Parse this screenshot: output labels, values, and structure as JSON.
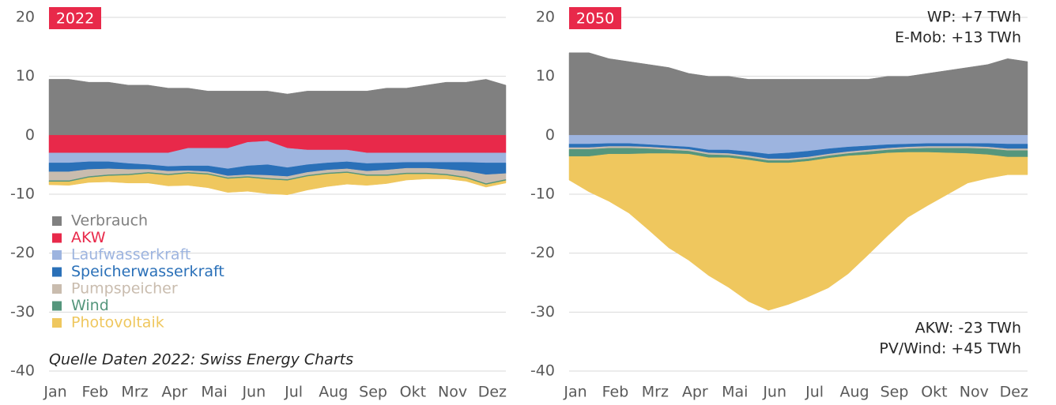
{
  "chart_data": [
    {
      "type": "area",
      "label": "2022",
      "categories": [
        "Jan",
        null,
        "Feb",
        null,
        "Mrz",
        null,
        "Apr",
        null,
        "Mai",
        null,
        "Jun",
        null,
        "Jul",
        null,
        "Aug",
        null,
        "Sep",
        null,
        "Okt",
        null,
        "Nov",
        null,
        "Dez",
        null
      ],
      "series": [
        {
          "name": "Verbrauch",
          "color": "#808080",
          "values": [
            9.5,
            9.5,
            9,
            9,
            8.5,
            8.5,
            8,
            8,
            7.5,
            7.5,
            7.5,
            7.5,
            7,
            7.5,
            7.5,
            7.5,
            7.5,
            8,
            8,
            8.5,
            9,
            9,
            9.5,
            8.5
          ]
        },
        {
          "name": "AKW",
          "color": "#e8294a",
          "values": [
            -3,
            -3,
            -3,
            -3,
            -3,
            -3,
            -3,
            -2.2,
            -2.2,
            -2.2,
            -1.2,
            -1,
            -2.2,
            -2.5,
            -2.5,
            -2.5,
            -3,
            -3,
            -3,
            -3,
            -3,
            -3,
            -3,
            -3
          ]
        },
        {
          "name": "Laufwasserkraft",
          "color": "#9db4df",
          "values": [
            -1.7,
            -1.7,
            -1.5,
            -1.5,
            -1.8,
            -2,
            -2.3,
            -3,
            -3,
            -3.5,
            -4,
            -4,
            -3.3,
            -2.5,
            -2.2,
            -2,
            -1.8,
            -1.7,
            -1.6,
            -1.6,
            -1.6,
            -1.6,
            -1.7,
            -1.7
          ]
        },
        {
          "name": "Speicherwasserkraft",
          "color": "#2a70b8",
          "values": [
            -1.5,
            -1.5,
            -1.3,
            -1.2,
            -1,
            -0.8,
            -0.8,
            -0.8,
            -1,
            -1.2,
            -1.5,
            -1.8,
            -1.5,
            -1.3,
            -1.2,
            -1.2,
            -1.3,
            -1.2,
            -1,
            -1,
            -1.2,
            -1.5,
            -2,
            -1.8
          ]
        },
        {
          "name": "Pumpspeicher",
          "color": "#c9bcae",
          "values": [
            -1.5,
            -1.5,
            -1.2,
            -1,
            -0.8,
            -0.5,
            -0.5,
            -0.3,
            -0.3,
            -0.3,
            -0.3,
            -0.5,
            -0.5,
            -0.5,
            -0.5,
            -0.5,
            -0.6,
            -0.8,
            -0.8,
            -0.8,
            -0.8,
            -1,
            -1.5,
            -1
          ]
        },
        {
          "name": "Wind",
          "color": "#55967c",
          "values": [
            -0.2,
            -0.2,
            -0.2,
            -0.2,
            -0.2,
            -0.2,
            -0.2,
            -0.2,
            -0.2,
            -0.2,
            -0.2,
            -0.2,
            -0.2,
            -0.2,
            -0.2,
            -0.2,
            -0.2,
            -0.2,
            -0.2,
            -0.2,
            -0.2,
            -0.2,
            -0.2,
            -0.2
          ]
        },
        {
          "name": "Photovoltaik",
          "color": "#efc75e",
          "values": [
            -0.5,
            -0.6,
            -0.8,
            -1,
            -1.3,
            -1.6,
            -1.8,
            -2,
            -2.2,
            -2.3,
            -2.3,
            -2.4,
            -2.4,
            -2.3,
            -2.1,
            -1.9,
            -1.6,
            -1.3,
            -1,
            -0.8,
            -0.6,
            -0.5,
            -0.4,
            -0.4
          ]
        }
      ],
      "ylim": [
        -40,
        20
      ],
      "yticks": [
        -40,
        -30,
        -20,
        -10,
        0,
        10,
        20
      ],
      "grid": true,
      "legend": "lower left",
      "annotations": [
        "Quelle Daten 2022: Swiss Energy Charts"
      ]
    },
    {
      "type": "area",
      "label": "2050",
      "categories": [
        "Jan",
        null,
        "Feb",
        null,
        "Mrz",
        null,
        "Apr",
        null,
        "Mai",
        null,
        "Jun",
        null,
        "Jul",
        null,
        "Aug",
        null,
        "Sep",
        null,
        "Okt",
        null,
        "Nov",
        null,
        "Dez",
        null
      ],
      "series": [
        {
          "name": "Verbrauch",
          "color": "#808080",
          "values": [
            14,
            14,
            13,
            12.5,
            12,
            11.5,
            10.5,
            10,
            10,
            9.5,
            9.5,
            9.5,
            9.5,
            9.5,
            9.5,
            9.5,
            10,
            10,
            10.5,
            11,
            11.5,
            12,
            13,
            12.5
          ]
        },
        {
          "name": "Laufwasserkraft",
          "color": "#9db4df",
          "values": [
            -1.5,
            -1.5,
            -1.4,
            -1.4,
            -1.6,
            -1.8,
            -2,
            -2.5,
            -2.5,
            -2.8,
            -3.2,
            -3,
            -2.7,
            -2.3,
            -2,
            -1.8,
            -1.6,
            -1.5,
            -1.4,
            -1.4,
            -1.4,
            -1.4,
            -1.5,
            -1.5
          ]
        },
        {
          "name": "Speicherwasserkraft",
          "color": "#2a70b8",
          "values": [
            -0.6,
            -0.6,
            -0.5,
            -0.5,
            -0.4,
            -0.4,
            -0.4,
            -0.5,
            -0.6,
            -0.7,
            -0.8,
            -1,
            -1,
            -0.9,
            -0.8,
            -0.7,
            -0.6,
            -0.5,
            -0.5,
            -0.5,
            -0.5,
            -0.6,
            -0.8,
            -0.8
          ]
        },
        {
          "name": "Pumpspeicher",
          "color": "#c9bcae",
          "values": [
            -0.3,
            -0.3,
            -0.3,
            -0.3,
            -0.3,
            -0.3,
            -0.3,
            -0.3,
            -0.3,
            -0.3,
            -0.3,
            -0.3,
            -0.3,
            -0.3,
            -0.3,
            -0.3,
            -0.3,
            -0.3,
            -0.3,
            -0.3,
            -0.3,
            -0.3,
            -0.3,
            -0.3
          ]
        },
        {
          "name": "Wind",
          "color": "#55967c",
          "values": [
            -1.2,
            -1.2,
            -1,
            -1,
            -0.8,
            -0.6,
            -0.5,
            -0.5,
            -0.4,
            -0.4,
            -0.4,
            -0.4,
            -0.4,
            -0.4,
            -0.4,
            -0.5,
            -0.5,
            -0.6,
            -0.7,
            -0.8,
            -0.9,
            -1,
            -1.1,
            -1.1
          ]
        },
        {
          "name": "Photovoltaik",
          "color": "#efc75e",
          "values": [
            -4,
            -6,
            -8,
            -10,
            -13,
            -16,
            -18,
            -20,
            -22,
            -24,
            -25,
            -24,
            -23,
            -22,
            -20,
            -17,
            -14,
            -11,
            -9,
            -7,
            -5,
            -4,
            -3,
            -3
          ]
        }
      ],
      "ylim": [
        -40,
        20
      ],
      "yticks": [
        -40,
        -30,
        -20,
        -10,
        0,
        10,
        20
      ],
      "grid": true,
      "legend": false,
      "annotations": [
        "WP: +7 TWh",
        "E-Mob: +13 TWh",
        "AKW: -23 TWh",
        "PV/Wind: +45 TWh"
      ]
    }
  ]
}
